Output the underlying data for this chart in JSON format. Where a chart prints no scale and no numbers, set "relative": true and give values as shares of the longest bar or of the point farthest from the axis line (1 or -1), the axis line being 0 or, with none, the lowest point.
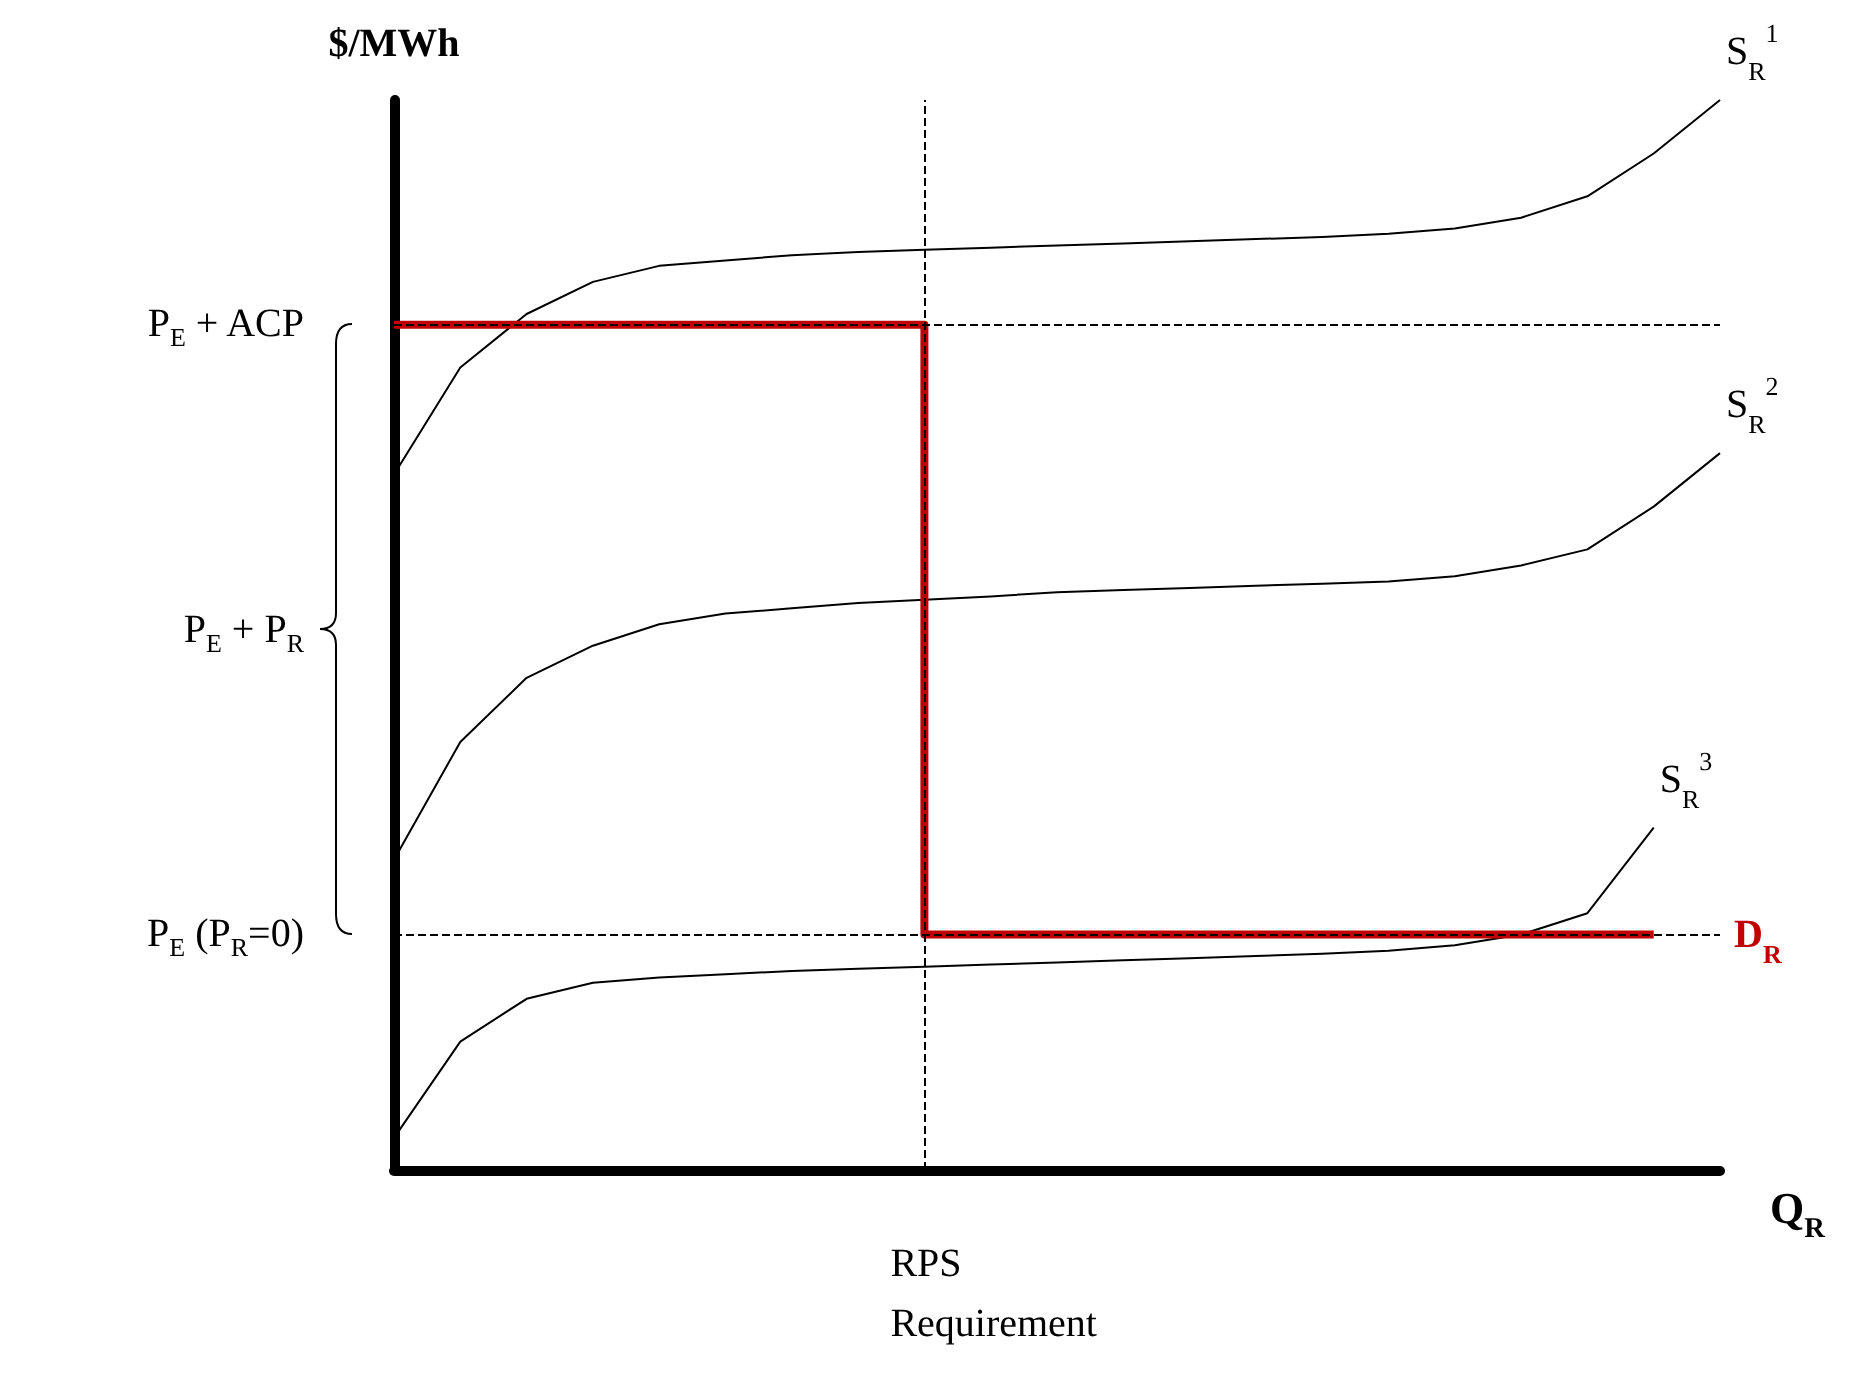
{
  "chart_data": {
    "type": "line",
    "relative": true,
    "xlabel": "Q$_{R}$",
    "ylabel": "$/MWh",
    "categories": [
      null,
      null,
      null,
      null,
      null,
      null,
      null,
      null,
      null,
      null,
      null,
      null,
      null,
      null,
      null,
      null,
      null,
      null,
      null,
      null,
      null
    ],
    "series": [
      {
        "name": "S$_{R}$$^{1}$",
        "color": "#000000",
        "values": [
          0.65,
          0.75,
          0.8,
          0.83,
          0.845,
          0.85,
          0.855,
          0.858,
          0.86,
          0.862,
          0.864,
          0.866,
          0.868,
          0.87,
          0.872,
          0.875,
          0.88,
          0.89,
          0.91,
          0.95,
          1.0
        ]
      },
      {
        "name": "S$_{R}$$^{2}$",
        "color": "#000000",
        "values": [
          0.29,
          0.4,
          0.46,
          0.49,
          0.51,
          0.52,
          0.525,
          0.53,
          0.533,
          0.536,
          0.54,
          0.542,
          0.544,
          0.546,
          0.548,
          0.55,
          0.555,
          0.565,
          0.58,
          0.62,
          0.67
        ]
      },
      {
        "name": "S$_{R}$$^{3}$",
        "color": "#000000",
        "values": [
          0.03,
          0.12,
          0.16,
          0.175,
          0.18,
          0.183,
          0.186,
          0.188,
          0.19,
          0.192,
          0.194,
          0.196,
          0.198,
          0.2,
          0.202,
          0.205,
          0.21,
          0.22,
          0.24,
          0.32,
          null
        ]
      },
      {
        "name": "D$_{R}$",
        "type": "step",
        "color": "#c00000",
        "values": [
          0.79,
          0.79,
          0.79,
          0.79,
          0.79,
          0.79,
          0.79,
          0.79,
          0.79,
          0.22,
          0.22,
          0.22,
          0.22,
          0.22,
          0.22,
          0.22,
          0.22,
          0.22,
          0.22,
          0.22,
          null
        ]
      }
    ],
    "ref_lines": [
      {
        "axis": "y",
        "value": 0.79,
        "line_style": "dashed",
        "color": "#000000"
      },
      {
        "axis": "y",
        "value": 0.22,
        "line_style": "dashed",
        "color": "#000000"
      }
    ],
    "annotations": [
      "P$_{E}$ + ACP",
      "P$_{E}$ + P$_{R}$",
      "P$_{E}$ (P$_{R}$=0)",
      "RPS Requirement"
    ],
    "grid": false,
    "legend": false,
    "marker": "none",
    "line_style": "solid"
  }
}
